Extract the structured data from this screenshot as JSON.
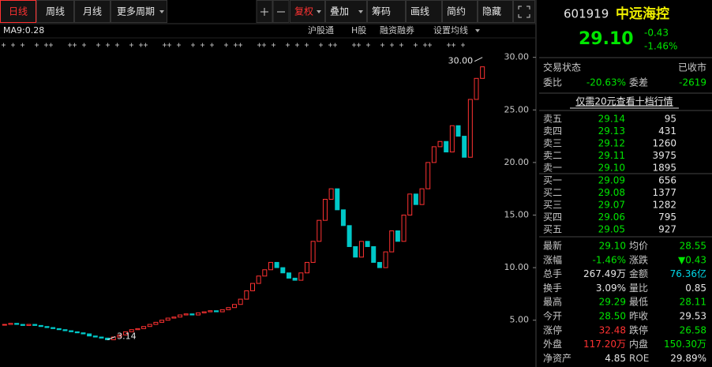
{
  "toolbar": {
    "periods": [
      "日线",
      "周线",
      "月线",
      "更多周期"
    ],
    "tools": [
      "复权",
      "叠加",
      "筹码",
      "画线",
      "简约",
      "隐藏"
    ]
  },
  "indicator_bar": {
    "ma_label": "MA9:0.28",
    "links": [
      "沪股通",
      "H股",
      "融资融券",
      "设置均线"
    ]
  },
  "chart_data": {
    "type": "candlestick",
    "closes": [
      4.6,
      4.7,
      4.6,
      4.5,
      4.6,
      4.5,
      4.4,
      4.3,
      4.2,
      4.1,
      4.0,
      3.9,
      3.8,
      3.7,
      3.5,
      3.4,
      3.3,
      3.14,
      3.4,
      3.6,
      3.9,
      4.1,
      4.2,
      4.4,
      4.6,
      4.8,
      5.0,
      5.2,
      5.3,
      5.5,
      5.6,
      5.5,
      5.7,
      5.8,
      5.9,
      5.8,
      6.0,
      6.2,
      6.5,
      7.0,
      7.8,
      8.5,
      9.2,
      9.8,
      10.5,
      10.0,
      9.5,
      9.0,
      8.8,
      9.5,
      10.5,
      12.5,
      14.5,
      16.5,
      17.5,
      15.5,
      14.0,
      12.0,
      11.0,
      12.5,
      12.0,
      10.5,
      10.0,
      11.5,
      13.5,
      12.5,
      15.0,
      17.0,
      16.0,
      17.5,
      20.0,
      21.5,
      22.0,
      21.0,
      23.5,
      22.5,
      20.5,
      26.0,
      28.0,
      29.1
    ],
    "ylim": [
      1.3,
      30.5
    ],
    "yticks": [
      {
        "value": 30,
        "label": "30.00"
      },
      {
        "value": 25,
        "label": "25.00"
      },
      {
        "value": 20,
        "label": "20.00"
      },
      {
        "value": 15,
        "label": "15.00"
      },
      {
        "value": 10,
        "label": "10.00"
      },
      {
        "value": 5,
        "label": "5.00"
      }
    ],
    "annotations": [
      {
        "value": 30,
        "label": "30.00"
      },
      3.14
    ],
    "up_color": "#ff3232",
    "down_color": "#00c8c8"
  },
  "quote": {
    "code": "601919",
    "name": "中远海控",
    "price": "29.10",
    "change": "-0.43",
    "change_pct": "-1.46%",
    "status_label": "交易状态",
    "status": "已收市",
    "ratio_label": "委比",
    "ratio": "-20.63%",
    "diff_label": "委差",
    "diff": "-2619",
    "promo": "仅需20元查看十档行情"
  },
  "order_book": {
    "sell": [
      [
        "卖五",
        "29.14",
        "95"
      ],
      [
        "卖四",
        "29.13",
        "431"
      ],
      [
        "卖三",
        "29.12",
        "1260"
      ],
      [
        "卖二",
        "29.11",
        "3975"
      ],
      [
        "卖一",
        "29.10",
        "1895"
      ]
    ],
    "buy": [
      [
        "买一",
        "29.09",
        "656"
      ],
      [
        "买二",
        "29.08",
        "1377"
      ],
      [
        "买三",
        "29.07",
        "1282"
      ],
      [
        "买四",
        "29.06",
        "795"
      ],
      [
        "买五",
        "29.05",
        "927"
      ]
    ]
  },
  "stats": [
    [
      "最新",
      "29.10",
      "均价",
      "28.55"
    ],
    [
      "涨幅",
      "-1.46%",
      "涨跌",
      "▼0.43"
    ],
    [
      "总手",
      "267.49万",
      "金额",
      "76.36亿"
    ],
    [
      "换手",
      "3.09%",
      "量比",
      "0.85"
    ],
    [
      "最高",
      "29.29",
      "最低",
      "28.11"
    ],
    [
      "今开",
      "28.50",
      "昨收",
      "29.53"
    ],
    [
      "涨停",
      "32.48",
      "跌停",
      "26.58"
    ],
    [
      "外盘",
      "117.20万",
      "内盘",
      "150.30万"
    ],
    [
      "净资产",
      "4.85",
      "ROE",
      "29.89%"
    ]
  ]
}
